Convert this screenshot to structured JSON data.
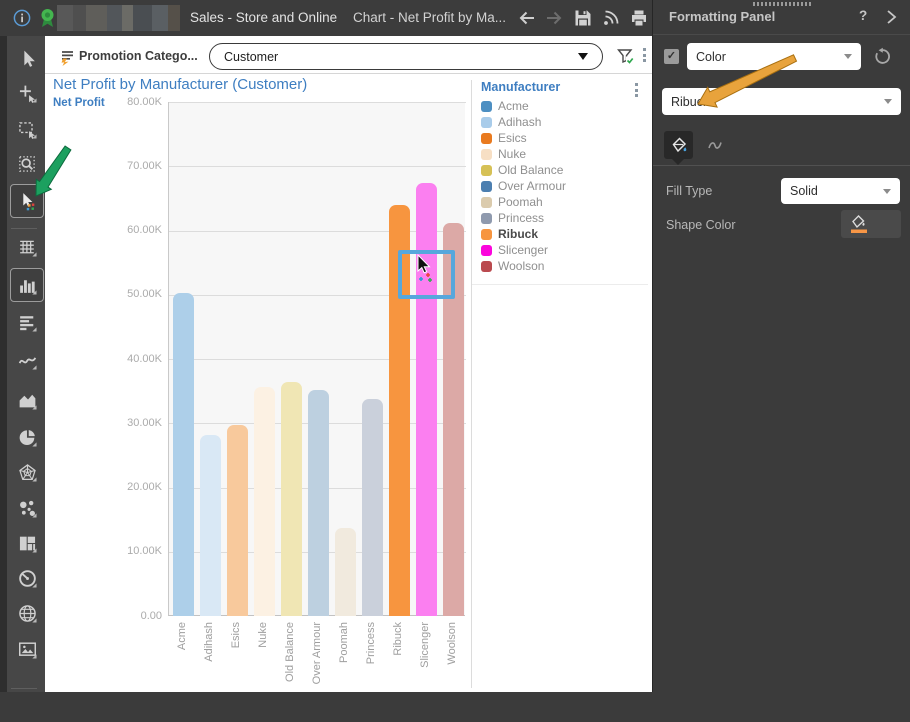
{
  "titlebar": {
    "document_title": "Sales - Store and Online",
    "view_title": "Chart - Net Profit by Ma...",
    "icons": [
      "info-icon",
      "certified-ribbon-icon",
      "back-icon",
      "forward-icon",
      "save-icon",
      "subscribe-icon",
      "print-icon"
    ],
    "redacted": true
  },
  "toolbar": {
    "selector_label": "Promotion Catego...",
    "dropdown_value": "Customer",
    "icons": [
      "selector-list-icon",
      "filter-applied-icon",
      "menu-kebab-icon"
    ]
  },
  "sidebar": {
    "tools": [
      {
        "name": "select-tool",
        "selected": false,
        "corner": false
      },
      {
        "name": "insert-pointer-tool",
        "selected": false,
        "corner": true
      },
      {
        "name": "marquee-select-tool",
        "selected": false,
        "corner": true
      },
      {
        "name": "zoom-area-tool",
        "selected": false,
        "corner": false
      },
      {
        "name": "data-selection-tool",
        "selected": true,
        "corner": false
      },
      {
        "name": "grid-visualization",
        "selected": false,
        "corner": true
      },
      {
        "name": "bar-chart-visualization",
        "selected": true,
        "corner": true
      },
      {
        "name": "horizontal-bar-visualization",
        "selected": false,
        "corner": true
      },
      {
        "name": "line-chart-visualization",
        "selected": false,
        "corner": true
      },
      {
        "name": "area-chart-visualization",
        "selected": false,
        "corner": true
      },
      {
        "name": "pie-chart-visualization",
        "selected": false,
        "corner": true
      },
      {
        "name": "radar-chart-visualization",
        "selected": false,
        "corner": true
      },
      {
        "name": "bubble-chart-visualization",
        "selected": false,
        "corner": true
      },
      {
        "name": "treemap-visualization",
        "selected": false,
        "corner": true
      },
      {
        "name": "gauge-visualization",
        "selected": false,
        "corner": true
      },
      {
        "name": "map-visualization",
        "selected": false,
        "corner": true
      },
      {
        "name": "image-visualization",
        "selected": false,
        "corner": true
      }
    ]
  },
  "chart_data": {
    "type": "bar",
    "title": "Net Profit by Manufacturer (Customer)",
    "ylabel": "Net Profit",
    "xlabel": "",
    "categories": [
      "Acme",
      "Adihash",
      "Esics",
      "Nuke",
      "Old Balance",
      "Over Armour",
      "Poomah",
      "Princess",
      "Ribuck",
      "Slicenger",
      "Woolson"
    ],
    "values": [
      50300,
      28200,
      29700,
      35700,
      36400,
      35200,
      13700,
      33800,
      64000,
      67400,
      61200
    ],
    "bar_colors": [
      "#ADCFE9",
      "#D9E8F5",
      "#F8C99C",
      "#FCF1E3",
      "#F0E6B4",
      "#BDD0E0",
      "#F1EADE",
      "#CAD0DB",
      "#F7953F",
      "#FB7FF0",
      "#DCA9A6"
    ],
    "ylim": [
      0,
      80000
    ],
    "y_tick_labels": [
      "80.00K",
      "70.00K",
      "60.00K",
      "50.00K",
      "40.00K",
      "30.00K",
      "20.00K",
      "10.00K",
      "0.00"
    ],
    "grid": "horizontal",
    "legend_position": "right",
    "highlighted_category": "Ribuck"
  },
  "legend": {
    "title": "Manufacturer",
    "items": [
      {
        "label": "Acme",
        "color": "#4D8FC2",
        "bold": false
      },
      {
        "label": "Adihash",
        "color": "#A9CCEA",
        "bold": false
      },
      {
        "label": "Esics",
        "color": "#E97A1F",
        "bold": false
      },
      {
        "label": "Nuke",
        "color": "#F7DFC4",
        "bold": false
      },
      {
        "label": "Old Balance",
        "color": "#D6C156",
        "bold": false
      },
      {
        "label": "Over Armour",
        "color": "#4C7FB0",
        "bold": false
      },
      {
        "label": "Poomah",
        "color": "#DBCBAD",
        "bold": false
      },
      {
        "label": "Princess",
        "color": "#8F9AAE",
        "bold": false
      },
      {
        "label": "Ribuck",
        "color": "#F7953F",
        "bold": true
      },
      {
        "label": "Slicenger",
        "color": "#FB05DC",
        "bold": false
      },
      {
        "label": "Woolson",
        "color": "#BA4A4F",
        "bold": false
      }
    ]
  },
  "formatting_panel": {
    "title": "Formatting Panel",
    "help_label": "?",
    "checkbox_checked": "✓",
    "color_dropdown_value": "Color",
    "target_dropdown_value": "Ribuck",
    "fill_type_label": "Fill Type",
    "fill_type_value": "Solid",
    "shape_color_label": "Shape Color",
    "shape_color_value": "#F79646",
    "tabs": [
      "fill-format-tab",
      "line-format-tab"
    ]
  },
  "annotations": {
    "green_arrow_target": "data-selection-tool",
    "green_arrow_color": "#1ca05f",
    "orange_arrow_target": "target-dropdown",
    "orange_arrow_color": "#e8a33c",
    "selection_border_color": "#57a7dc"
  }
}
